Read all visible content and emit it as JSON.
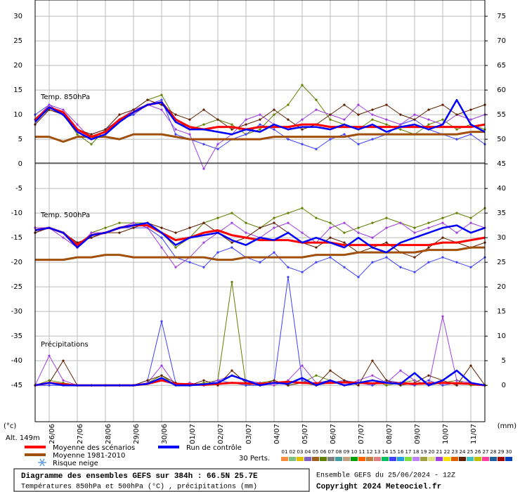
{
  "chart_data": {
    "type": "line",
    "title": "Diagramme des ensembles GEFS sur 384h : 66.5N 25.7E",
    "subtitle": "Températures 850hPa et 500hPa (°C) , précipitations (mm)",
    "run_label": "Ensemble GEFS du 25/06/2024 - 12Z",
    "copyright": "Copyright 2024 Meteociel.fr",
    "altitude": "Alt. 149m",
    "ylabel": "(°c)",
    "y2label": "(mm)",
    "snow_label": "Risque neige",
    "perts_label": "30 Perts.",
    "panels": [
      "Temp. 850hPa",
      "Temp. 500hPa",
      "Précipitations"
    ],
    "x": [
      0,
      12,
      24,
      36,
      48,
      60,
      72,
      84,
      96,
      108,
      120,
      132,
      144,
      156,
      168,
      180,
      192,
      204,
      216,
      228,
      240,
      252,
      264,
      276,
      288,
      300,
      312,
      324,
      336,
      348,
      360,
      372,
      384
    ],
    "xlim": [
      0,
      384
    ],
    "xticks": [
      {
        "value": 12,
        "label": "26/06"
      },
      {
        "value": 36,
        "label": "27/06"
      },
      {
        "value": 60,
        "label": "28/06"
      },
      {
        "value": 84,
        "label": "29/06"
      },
      {
        "value": 108,
        "label": "30/06"
      },
      {
        "value": 132,
        "label": "01/07"
      },
      {
        "value": 156,
        "label": "02/07"
      },
      {
        "value": 180,
        "label": "03/07"
      },
      {
        "value": 204,
        "label": "04/07"
      },
      {
        "value": 228,
        "label": "05/07"
      },
      {
        "value": 252,
        "label": "06/07"
      },
      {
        "value": 276,
        "label": "07/07"
      },
      {
        "value": 300,
        "label": "08/07"
      },
      {
        "value": 324,
        "label": "09/07"
      },
      {
        "value": 348,
        "label": "10/07"
      },
      {
        "value": 372,
        "label": "11/07"
      }
    ],
    "ylim": [
      -52.4,
      33.3
    ],
    "yticks": [
      30,
      25,
      20,
      15,
      10,
      5,
      0,
      -5,
      -10,
      -15,
      -20,
      -25,
      -30,
      -35,
      -40,
      -45
    ],
    "y2lim": [
      -7.4,
      78.3
    ],
    "y2ticks": [
      75,
      70,
      65,
      60,
      55,
      50,
      45,
      40,
      35,
      30,
      25,
      20,
      15,
      10,
      5,
      0
    ],
    "grid": true,
    "series": [
      {
        "name": "Moyenne 1981-2010",
        "color": "#a0500a",
        "t850": [
          5.5,
          5.5,
          4.5,
          5.5,
          5.5,
          5.5,
          5,
          6,
          6,
          6,
          5.5,
          5,
          5,
          5,
          5,
          5,
          5,
          5.5,
          5.5,
          5.5,
          5.5,
          5.5,
          5.5,
          6,
          6,
          6,
          6,
          6,
          6,
          6,
          6,
          6.5,
          6.5
        ],
        "t500": [
          -19.5,
          -19.5,
          -19.5,
          -19,
          -19,
          -18.5,
          -18.5,
          -19,
          -19,
          -19,
          -19,
          -19,
          -19,
          -19.5,
          -19.5,
          -19,
          -19,
          -19,
          -19,
          -19,
          -18.5,
          -18.5,
          -18.5,
          -18,
          -18,
          -18,
          -18,
          -18,
          -17.5,
          -17.5,
          -17.5,
          -17,
          -17
        ]
      },
      {
        "name": "Moyenne des scénarios",
        "color": "#ff0000",
        "t850": [
          9,
          11.5,
          10.5,
          7,
          5.5,
          6.5,
          9,
          10.5,
          12,
          12.5,
          9,
          7.5,
          7,
          7.5,
          7.5,
          7,
          7.5,
          7.5,
          7.5,
          8,
          8,
          7.5,
          7.5,
          7.5,
          7.5,
          7.5,
          7.5,
          7.5,
          7.5,
          7.5,
          7.5,
          7.5,
          8
        ],
        "t500": [
          -13.5,
          -13,
          -14,
          -16.5,
          -14.5,
          -14,
          -13,
          -12.5,
          -12.5,
          -14,
          -15.5,
          -15,
          -14,
          -13.5,
          -14.5,
          -15,
          -15.5,
          -15.5,
          -15.5,
          -16,
          -16,
          -16,
          -16.5,
          -16.5,
          -16.5,
          -16.5,
          -16.5,
          -16.5,
          -16.5,
          -16,
          -16,
          -15.5,
          -15
        ],
        "precip": [
          0,
          0.5,
          0.2,
          0,
          0,
          0,
          0,
          0,
          0.3,
          1,
          0.3,
          0.2,
          0.1,
          0.3,
          0.5,
          0.4,
          0.3,
          0.5,
          0.7,
          0.5,
          0.4,
          0.5,
          0.6,
          0.5,
          0.4,
          0.5,
          0.4,
          0.3,
          0.4,
          0.5,
          0.4,
          0.3,
          0
        ]
      },
      {
        "name": "Run de contrôle",
        "color": "#0000ff",
        "t850": [
          8.5,
          11.5,
          10,
          6.5,
          5,
          6,
          8.5,
          10.5,
          12,
          12.5,
          8.5,
          7,
          7,
          6.5,
          6,
          7,
          6.5,
          8,
          7,
          7.5,
          7.5,
          7,
          8,
          7,
          8,
          6.5,
          7.5,
          8,
          7,
          8,
          13,
          8,
          6.5
        ],
        "t500": [
          -13.5,
          -13,
          -14,
          -17,
          -14.5,
          -14,
          -13,
          -12.5,
          -12,
          -14,
          -16.5,
          -15,
          -14.5,
          -14,
          -15.5,
          -16.5,
          -15,
          -15.5,
          -14,
          -16,
          -15,
          -16,
          -17,
          -15,
          -17,
          -18,
          -16,
          -15,
          -14,
          -13,
          -12.5,
          -14,
          -13
        ],
        "precip": [
          0,
          0.5,
          0,
          0,
          0,
          0,
          0,
          0,
          0.3,
          1.5,
          0,
          0,
          0.2,
          0.5,
          2,
          1,
          0,
          0.5,
          0.3,
          1.5,
          0,
          1,
          0,
          0.5,
          1,
          0.5,
          0.3,
          2.5,
          0,
          1,
          3,
          0.5,
          0
        ]
      }
    ],
    "perturbations": [
      {
        "name": "01",
        "color": "#ff8c40"
      },
      {
        "name": "02",
        "color": "#80c080"
      },
      {
        "name": "03",
        "color": "#e0c000"
      },
      {
        "name": "04",
        "color": "#8060c0"
      },
      {
        "name": "05",
        "color": "#a06020"
      },
      {
        "name": "06",
        "color": "#608000",
        "t850": [
          9,
          11,
          10,
          6,
          4,
          7,
          9,
          11,
          13,
          14,
          9,
          7,
          8,
          9,
          8,
          6,
          7,
          10,
          12,
          16,
          13,
          9,
          8,
          7,
          9,
          8,
          7,
          6,
          8,
          9,
          7,
          8,
          7
        ],
        "t500": [
          -13,
          -13,
          -14,
          -17,
          -14,
          -13,
          -12,
          -12,
          -12,
          -14,
          -17,
          -15,
          -12,
          -11,
          -10,
          -12,
          -13,
          -11,
          -10,
          -9,
          -11,
          -12,
          -14,
          -13,
          -12,
          -11,
          -12,
          -13,
          -12,
          -11,
          -10,
          -11,
          -9
        ],
        "precip": [
          0,
          1,
          0.5,
          0,
          0,
          0,
          0,
          0,
          0.5,
          2,
          0,
          0,
          0.5,
          1,
          21,
          0,
          0.5,
          1,
          0,
          0.5,
          2,
          1,
          0,
          0.5,
          1,
          0,
          0.5,
          1,
          0,
          0.5,
          1,
          0,
          0
        ]
      },
      {
        "name": "07",
        "color": "#808080"
      },
      {
        "name": "08",
        "color": "#40a0a0"
      },
      {
        "name": "09",
        "color": "#c0a080"
      },
      {
        "name": "10",
        "color": "#00a000"
      },
      {
        "name": "11",
        "color": "#ff6000"
      },
      {
        "name": "12",
        "color": "#c08040"
      },
      {
        "name": "13",
        "color": "#e08080"
      },
      {
        "name": "14",
        "color": "#00c060"
      },
      {
        "name": "15",
        "color": "#4040ff",
        "t850": [
          10,
          12,
          10,
          7,
          6,
          7,
          9,
          10,
          12,
          13,
          6,
          5,
          4,
          3,
          5,
          6,
          8,
          7,
          5,
          4,
          3,
          5,
          6,
          4,
          5,
          6,
          8,
          9,
          7,
          6,
          5,
          6,
          4
        ],
        "t500": [
          -14,
          -13,
          -14,
          -16,
          -15,
          -14,
          -13,
          -13,
          -13,
          -15,
          -19,
          -20,
          -21,
          -18,
          -17,
          -19,
          -20,
          -18,
          -21,
          -22,
          -20,
          -19,
          -21,
          -23,
          -20,
          -19,
          -21,
          -22,
          -20,
          -19,
          -20,
          -21,
          -19
        ],
        "precip": [
          0,
          0,
          0,
          0,
          0,
          0,
          0,
          0,
          1,
          13,
          0.5,
          0,
          0,
          1,
          0.5,
          0,
          0,
          0.5,
          22,
          1,
          0,
          0.5,
          1,
          0.5,
          0,
          1,
          0.5,
          0,
          1,
          0,
          0.5,
          0.5,
          0
        ]
      },
      {
        "name": "16",
        "color": "#20a0e0"
      },
      {
        "name": "17",
        "color": "#80e040"
      },
      {
        "name": "18",
        "color": "#c080ff"
      },
      {
        "name": "19",
        "color": "#a0a040"
      },
      {
        "name": "20",
        "color": "#e0e080"
      },
      {
        "name": "21",
        "color": "#a040e0",
        "t850": [
          9,
          12,
          11,
          8,
          5,
          6,
          9,
          11,
          12,
          11,
          7,
          6,
          -1,
          4,
          6,
          9,
          10,
          8,
          7,
          9,
          11,
          10,
          9,
          12,
          10,
          9,
          8,
          10,
          9,
          8,
          10,
          9,
          10
        ],
        "t500": [
          -13,
          -13,
          -15,
          -17,
          -14,
          -14,
          -13,
          -12,
          -13,
          -17,
          -21,
          -19,
          -16,
          -14,
          -12,
          -14,
          -15,
          -13,
          -12,
          -14,
          -16,
          -13,
          -12,
          -14,
          -15,
          -13,
          -12,
          -14,
          -13,
          -12,
          -14,
          -12,
          -13
        ],
        "precip": [
          0,
          6,
          1,
          0,
          0,
          0,
          0,
          0,
          0.5,
          4,
          0,
          0.5,
          0,
          1,
          2,
          1,
          0.5,
          0,
          1,
          4,
          0.5,
          1,
          0,
          1,
          2,
          0.5,
          3,
          1,
          0,
          14,
          1,
          0.5,
          0
        ]
      },
      {
        "name": "22",
        "color": "#ffe000"
      },
      {
        "name": "23",
        "color": "#e06000"
      },
      {
        "name": "24",
        "color": "#602000",
        "t850": [
          8,
          11,
          10,
          7,
          6,
          7,
          10,
          11,
          13,
          12,
          10,
          9,
          11,
          9,
          7,
          8,
          9,
          11,
          9,
          7,
          8,
          10,
          12,
          10,
          11,
          12,
          10,
          9,
          11,
          12,
          10,
          11,
          12
        ],
        "t500": [
          -14,
          -13,
          -14,
          -16,
          -15,
          -14,
          -14,
          -13,
          -12,
          -13,
          -14,
          -13,
          -12,
          -14,
          -16,
          -15,
          -13,
          -12,
          -14,
          -16,
          -17,
          -15,
          -16,
          -18,
          -17,
          -16,
          -18,
          -19,
          -17,
          -15,
          -16,
          -17,
          -16
        ],
        "precip": [
          0,
          0.5,
          5,
          0,
          0,
          0,
          0,
          0,
          1,
          2,
          0.5,
          0,
          1,
          0,
          3,
          0.5,
          0,
          1,
          0,
          0.5,
          0,
          3,
          1,
          0,
          5,
          1,
          0,
          0.5,
          2,
          1,
          0,
          4,
          0
        ]
      },
      {
        "name": "25",
        "color": "#40c0c0"
      },
      {
        "name": "26",
        "color": "#c0c000"
      },
      {
        "name": "27",
        "color": "#ff40a0"
      },
      {
        "name": "28",
        "color": "#2060a0"
      },
      {
        "name": "29",
        "color": "#a00000"
      },
      {
        "name": "30",
        "color": "#0040c0"
      }
    ]
  }
}
